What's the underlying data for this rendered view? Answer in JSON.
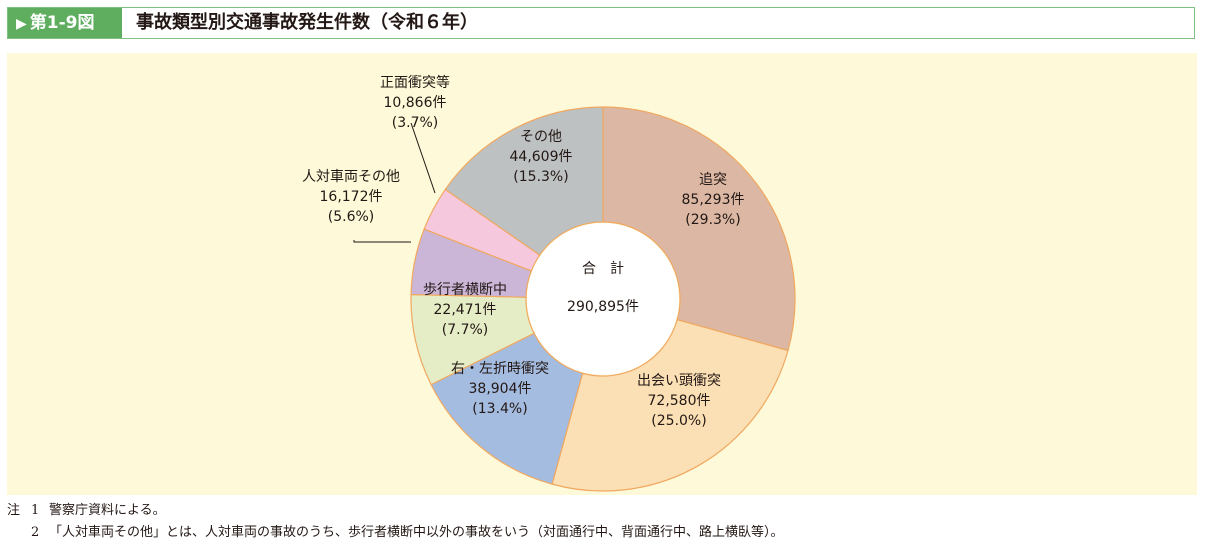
{
  "figure": {
    "label": "第1-9図",
    "title": "事故類型別交通事故発生件数（令和６年）"
  },
  "chart_data": {
    "type": "donut",
    "center_label": "合　計",
    "total": "290,895件",
    "direction": "clockwise from 12 o'clock",
    "slices": [
      {
        "name": "追突",
        "value": 85293,
        "value_text": "85,293件",
        "pct_text": "(29.3%)",
        "color": "#dcb8a4"
      },
      {
        "name": "出会い頭衝突",
        "value": 72580,
        "value_text": "72,580件",
        "pct_text": "(25.0%)",
        "color": "#fbdfb5"
      },
      {
        "name": "右・左折時衝突",
        "value": 38904,
        "value_text": "38,904件",
        "pct_text": "(13.4%)",
        "color": "#a4bce0"
      },
      {
        "name": "歩行者横断中",
        "value": 22471,
        "value_text": "22,471件",
        "pct_text": "(7.7%)",
        "color": "#e5edc6"
      },
      {
        "name": "人対車両その他",
        "value": 16172,
        "value_text": "16,172件",
        "pct_text": "(5.6%)",
        "color": "#cbb6d8"
      },
      {
        "name": "正面衝突等",
        "value": 10866,
        "value_text": "10,866件",
        "pct_text": "(3.7%)",
        "color": "#f6c8dd"
      },
      {
        "name": "その他",
        "value": 44609,
        "value_text": "44,609件",
        "pct_text": "(15.3%)",
        "color": "#bdc1c1"
      }
    ]
  },
  "notes": {
    "prefix": "注",
    "items": [
      {
        "num": "1",
        "text": "警察庁資料による。"
      },
      {
        "num": "2",
        "text": "「人対車両その他」とは、人対車両の事故のうち、歩行者横断中以外の事故をいう（対面通行中、背面通行中、路上横臥等）。"
      }
    ]
  },
  "colors": {
    "header_accent": "#5fae5f",
    "header_border": "#7fbf7f",
    "panel_background": "#fef9d8",
    "slice_border": "#f0a860"
  }
}
